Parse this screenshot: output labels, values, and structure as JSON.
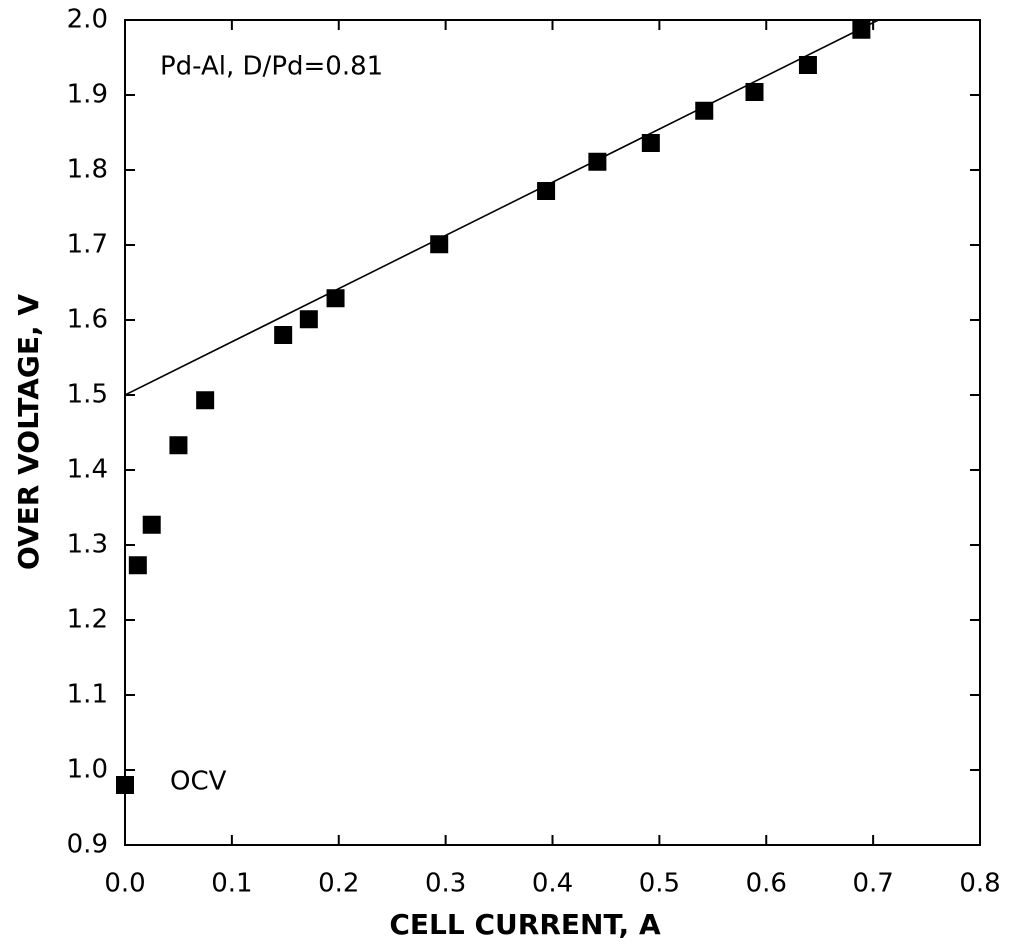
{
  "chart_data": {
    "type": "scatter",
    "xlabel": "CELL CURRENT, A",
    "ylabel": "OVER VOLTAGE, V",
    "annotations": [
      "Pd-Al, D/Pd=0.81",
      "OCV"
    ],
    "color": "#000000",
    "x": [
      0.0,
      0.012,
      0.025,
      0.05,
      0.075,
      0.148,
      0.172,
      0.197,
      0.294,
      0.394,
      0.442,
      0.492,
      0.542,
      0.589,
      0.639,
      0.689
    ],
    "values": [
      0.98,
      1.273,
      1.327,
      1.433,
      1.493,
      1.58,
      1.601,
      1.629,
      1.701,
      1.772,
      1.811,
      1.836,
      1.879,
      1.904,
      1.94,
      1.987
    ],
    "fit_line": {
      "x": [
        0.0,
        0.705
      ],
      "values": [
        1.5,
        2.0
      ]
    },
    "xlim": [
      0,
      0.8
    ],
    "ylim": [
      0.9,
      2.0
    ],
    "xticks": [
      {
        "value": 0,
        "label": "0.0"
      },
      0.1,
      0.2,
      0.3,
      0.4,
      0.5,
      0.6,
      0.7,
      0.8
    ],
    "yticks": [
      0.9,
      {
        "value": 1.0,
        "label": "1.0"
      },
      1.1,
      1.2,
      1.3,
      1.4,
      1.5,
      1.6,
      1.7,
      1.8,
      1.9,
      {
        "value": 2.0,
        "label": "2.0"
      }
    ]
  }
}
